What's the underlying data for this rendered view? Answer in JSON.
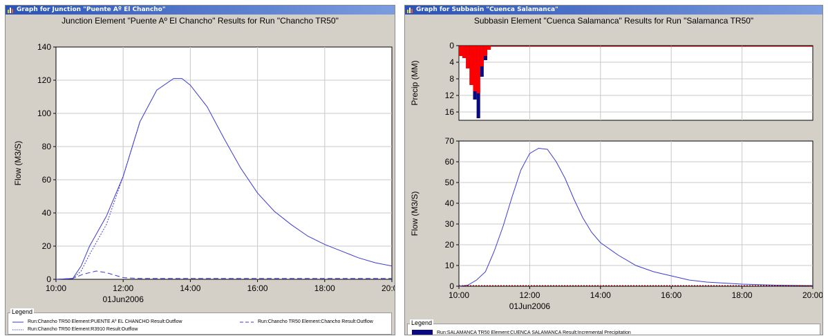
{
  "window1": {
    "title": "Graph for Junction \"Puente Aº El Chancho\"",
    "chart_title": "Junction Element \"Puente Aº El Chancho\" Results for Run \"Chancho TR50\"",
    "legend_title": "Legend",
    "legend": [
      "Run:Chancho TR50 Element:PUENTE Aº EL CHANCHO Result:Outflow",
      "Run:Chancho TR50 Element:R3910 Result:Outflow",
      "Run:Chancho TR50 Element:Chancho Result:Outflow"
    ]
  },
  "window2": {
    "title": "Graph for Subbasin \"Cuenca Salamanca\"",
    "chart_title": "Subbasin Element \"Cuenca Salamanca\" Results for Run \"Salamanca TR50\"",
    "legend_title": "Legend",
    "legend": [
      "Run:SALAMANCA TR50 Element:CUENCA SALAMANCA Result:Incremental Precipitation"
    ]
  },
  "colors": {
    "flow_line": "#3a3ad6",
    "precip_total": "#0a0a80",
    "precip_excess": "#ff0000",
    "loss_line": "#c00000",
    "grid": "#c8c8c8"
  },
  "chart_data": [
    {
      "type": "line",
      "xlabel": "",
      "ylabel": "Flow (M3/S)",
      "ylim": [
        0,
        140
      ],
      "yticks": [
        "0",
        "20",
        "40",
        "60",
        "80",
        "100",
        "120",
        "140"
      ],
      "xlim": [
        10,
        20
      ],
      "xticks": [
        "10:00",
        "12:00",
        "14:00",
        "16:00",
        "18:00",
        "20:00"
      ],
      "date_label": "01Jun2006",
      "grid": true,
      "series": [
        {
          "name": "Run:Chancho TR50 Element:PUENTE Aº EL CHANCHO Result:Outflow",
          "style": "solid",
          "x": [
            10,
            10.5,
            10.75,
            11,
            11.5,
            12,
            12.5,
            13,
            13.5,
            13.75,
            14,
            14.5,
            15,
            15.5,
            16,
            16.5,
            17,
            17.5,
            18,
            18.5,
            19,
            19.5,
            20
          ],
          "y": [
            0,
            0.5,
            8,
            20,
            38,
            62,
            95,
            114,
            121,
            121,
            117,
            104,
            85,
            67,
            52,
            41,
            33,
            26,
            21,
            17,
            13,
            10,
            8
          ]
        },
        {
          "name": "Run:Chancho TR50 Element:R3910 Result:Outflow",
          "style": "dotted",
          "x": [
            10,
            10.5,
            10.75,
            11,
            11.5,
            12,
            12.5
          ],
          "y": [
            0,
            0.5,
            5,
            15,
            33,
            62,
            95
          ]
        },
        {
          "name": "Run:Chancho TR50 Element:Chancho Result:Outflow",
          "style": "dashed",
          "x": [
            10,
            10.5,
            10.8,
            11.2,
            11.5,
            12,
            12.5,
            14,
            16,
            18,
            20
          ],
          "y": [
            0,
            0.5,
            3,
            5,
            4,
            1,
            0.5,
            0.5,
            0.5,
            0.5,
            0.5
          ]
        }
      ]
    },
    {
      "type": "bar",
      "ylabel": "Precip (MM)",
      "ylim": [
        0,
        18
      ],
      "inverted": true,
      "yticks": [
        "0",
        "4",
        "8",
        "12",
        "16"
      ],
      "xlim": [
        10,
        20
      ],
      "grid": true,
      "bars": [
        {
          "x": 10.0,
          "total": 2.5,
          "excess": 2.5
        },
        {
          "x": 10.1,
          "total": 3,
          "excess": 3
        },
        {
          "x": 10.2,
          "total": 5.5,
          "excess": 5.5
        },
        {
          "x": 10.3,
          "total": 9.5,
          "excess": 9.5
        },
        {
          "x": 10.4,
          "total": 13,
          "excess": 11
        },
        {
          "x": 10.5,
          "total": 17.5,
          "excess": 11.5
        },
        {
          "x": 10.6,
          "total": 7.5,
          "excess": 5
        },
        {
          "x": 10.7,
          "total": 3.5,
          "excess": 2.5
        },
        {
          "x": 10.8,
          "total": 1,
          "excess": 1
        }
      ]
    },
    {
      "type": "line",
      "ylabel": "Flow (M3/S)",
      "ylim": [
        0,
        70
      ],
      "yticks": [
        "0",
        "10",
        "20",
        "30",
        "40",
        "50",
        "60",
        "70"
      ],
      "xlim": [
        10,
        20
      ],
      "xticks": [
        "10:00",
        "12:00",
        "14:00",
        "16:00",
        "18:00",
        "20:00"
      ],
      "date_label": "01Jun2006",
      "grid": true,
      "series": [
        {
          "style": "solid",
          "x": [
            10,
            10.25,
            10.5,
            10.75,
            11,
            11.25,
            11.5,
            11.75,
            12,
            12.25,
            12.5,
            12.75,
            13,
            13.25,
            13.5,
            13.75,
            14,
            14.5,
            15,
            15.5,
            16,
            16.5,
            17,
            17.5,
            18,
            19,
            20
          ],
          "y": [
            0,
            0.5,
            3,
            7,
            17,
            29,
            43,
            56,
            64,
            66.5,
            66,
            60,
            52,
            42,
            33,
            26,
            21,
            15,
            10,
            7,
            5,
            3,
            2,
            1.5,
            1,
            0.5,
            0.3
          ]
        }
      ]
    }
  ]
}
